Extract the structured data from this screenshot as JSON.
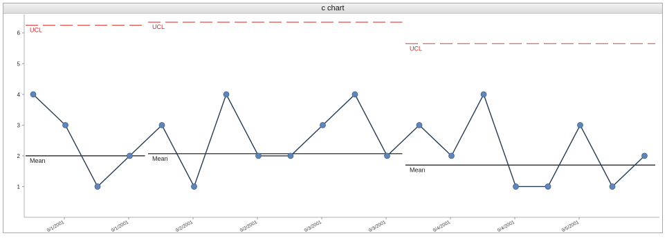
{
  "chart_data": {
    "type": "line",
    "title": "c chart",
    "ylim": [
      0,
      6.6
    ],
    "yticks": [
      1,
      2,
      3,
      4,
      5,
      6
    ],
    "x_tick_labels": [
      "9/1/2001",
      "9/1/2001",
      "9/2/2001",
      "9/2/2001",
      "9/3/2001",
      "9/3/2001",
      "9/4/2001",
      "9/4/2001",
      "9/5/2001"
    ],
    "series": [
      {
        "values": [
          4,
          3,
          1,
          2,
          3,
          1,
          4,
          2,
          2,
          3,
          4,
          2,
          3,
          2,
          4,
          1,
          1,
          3,
          1,
          2
        ]
      }
    ],
    "phases": [
      {
        "start": 0,
        "end": 3,
        "ucl": 6.25,
        "mean": 2.0
      },
      {
        "start": 4,
        "end": 11,
        "ucl": 6.35,
        "mean": 2.07
      },
      {
        "start": 12,
        "end": 19,
        "ucl": 5.65,
        "mean": 1.7
      }
    ],
    "ucl_label": "UCL",
    "mean_label": "Mean",
    "colors": {
      "line": "#253a52",
      "marker": "#5f86b6",
      "ucl": "#d9534f",
      "mean": "#111111"
    }
  }
}
